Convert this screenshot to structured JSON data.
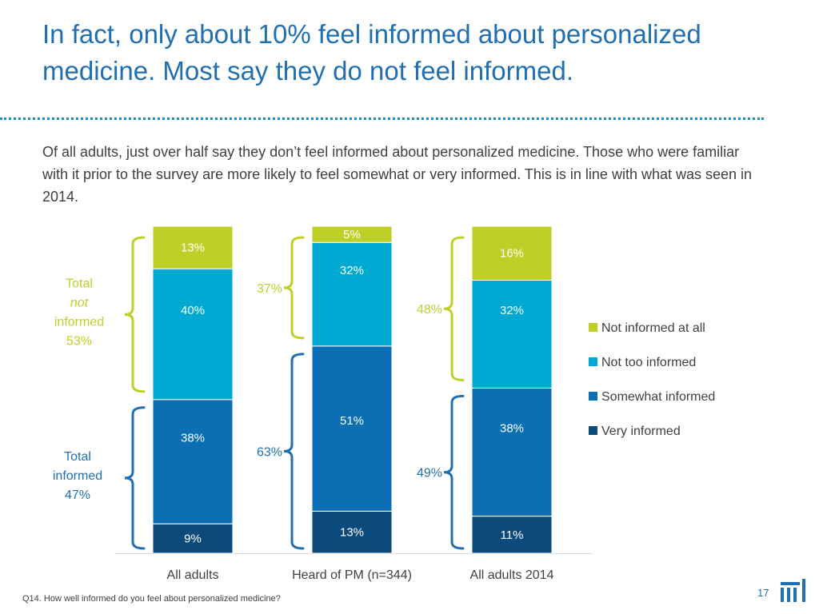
{
  "slide": {
    "title": "In fact, only about 10% feel informed about personalized medicine. Most say they do not feel informed.",
    "subtitle": "Of all adults, just over half say they don’t feel informed about personalized medicine. Those who were familiar with it prior to the survey are more likely to feel somewhat or very informed. This is in line with what was seen in 2014.",
    "footnote": "Q14. How well informed do you feel about personalized medicine?",
    "page_number": "17",
    "logo_icon": "company-logo-icon"
  },
  "chart_data": {
    "type": "bar",
    "stacked": true,
    "categories": [
      "All adults",
      "Heard of PM (n=344)",
      "All adults 2014"
    ],
    "series": [
      {
        "name": "Very informed",
        "color": "#0b4a7a",
        "values": [
          9,
          13,
          11
        ],
        "labels": [
          "9%",
          "13%",
          "11%"
        ]
      },
      {
        "name": "Somewhat informed",
        "color": "#0c6fb3",
        "values": [
          38,
          51,
          38
        ],
        "labels": [
          "38%",
          "51%",
          "38%"
        ]
      },
      {
        "name": "Not too informed",
        "color": "#00a9d2",
        "values": [
          40,
          32,
          32
        ],
        "labels": [
          "40%",
          "32%",
          "32%"
        ]
      },
      {
        "name": "Not informed at all",
        "color": "#c0cf28",
        "values": [
          13,
          5,
          16
        ],
        "labels": [
          "13%",
          "5%",
          "16%"
        ]
      }
    ],
    "legend": {
      "position": "right",
      "order": [
        "Not informed at all",
        "Not too informed",
        "Somewhat informed",
        "Very informed"
      ]
    },
    "ylim": [
      0,
      100
    ],
    "group_annotations": {
      "not_informed": {
        "color": "#c0cf28",
        "all_adults_lines": [
          "Total",
          "not",
          "informed",
          "53%"
        ],
        "heard_of_pm": "37%",
        "all_adults_2014": "48%"
      },
      "informed": {
        "color": "#1f6fb2",
        "all_adults_lines": [
          "Total",
          "informed",
          "47%"
        ],
        "heard_of_pm": "63%",
        "all_adults_2014": "49%"
      }
    }
  }
}
